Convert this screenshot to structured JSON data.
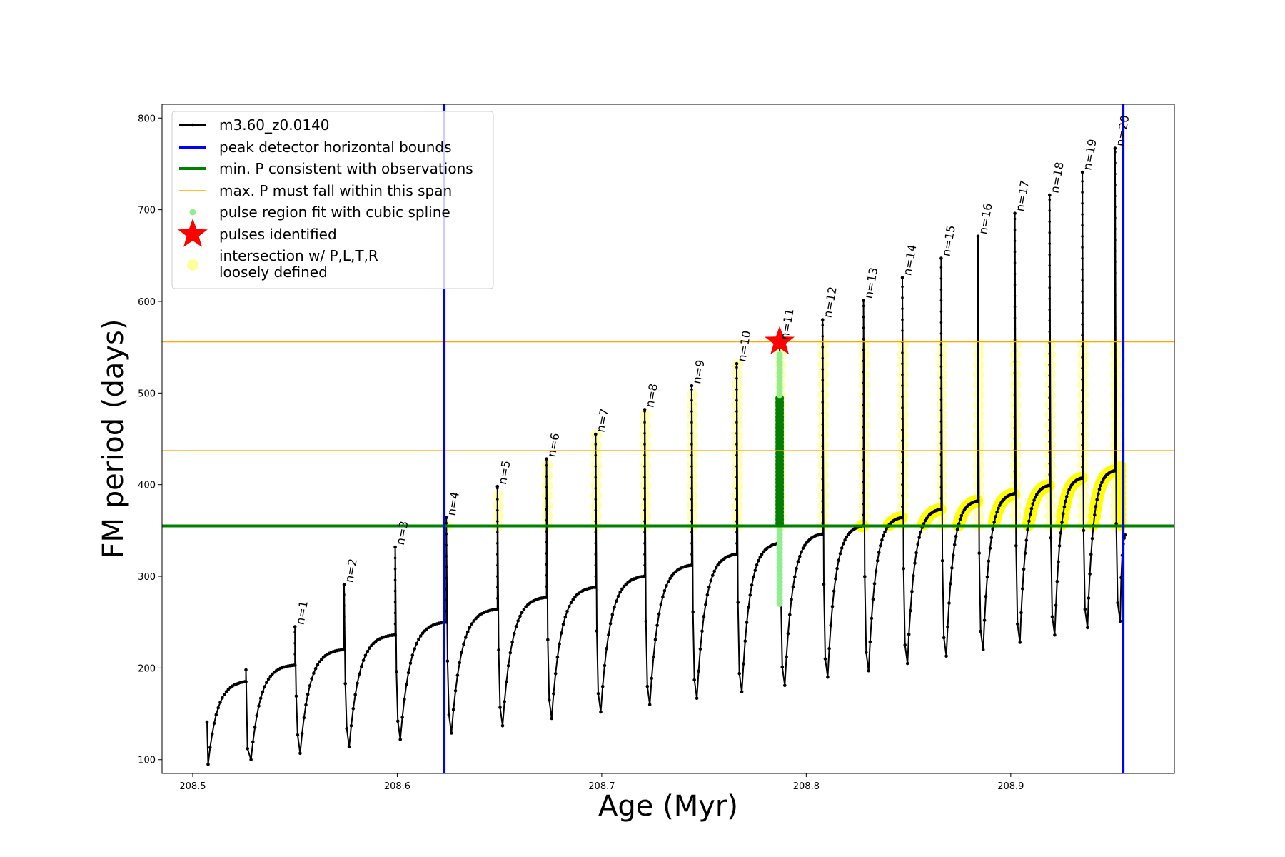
{
  "chart_data": {
    "type": "line",
    "xlabel": "Age (Myr)",
    "ylabel": "FM period (days)",
    "xlim": [
      208.485,
      208.98
    ],
    "ylim": [
      85,
      815
    ],
    "x_ticks": [
      208.5,
      208.6,
      208.7,
      208.8,
      208.9
    ],
    "y_ticks": [
      100,
      200,
      300,
      400,
      500,
      600,
      700,
      800
    ],
    "legend_position": "upper-left",
    "legend": [
      {
        "label": "m3.60_z0.0140",
        "color": "#000000",
        "marker": "line-dot"
      },
      {
        "label": "peak detector horizontal bounds",
        "color": "#0000ff",
        "marker": "thick-line"
      },
      {
        "label": "min. P consistent with observations",
        "color": "#008000",
        "marker": "thick-line"
      },
      {
        "label": "max. P must fall within this span",
        "color": "#ffa500",
        "marker": "thin-line"
      },
      {
        "label": "pulse region fit with cubic spline",
        "color": "#90ee90",
        "marker": "dot"
      },
      {
        "label": "pulses identified",
        "color": "#ff0000",
        "marker": "star"
      },
      {
        "label": "intersection w/ P,L,T,R",
        "label2": "loosely defined",
        "color": "#ffff99",
        "marker": "big-dot"
      }
    ],
    "vertical_lines": [
      {
        "x": 208.623,
        "color": "#0000ff",
        "role": "peak detector horizontal bounds"
      },
      {
        "x": 208.955,
        "color": "#0000ff",
        "role": "peak detector horizontal bounds"
      }
    ],
    "horizontal_lines": [
      {
        "y": 355,
        "color": "#008000",
        "role": "min. P consistent with observations"
      },
      {
        "y": 437,
        "color": "#ffa500",
        "role": "max. P must fall within this span"
      },
      {
        "y": 556,
        "color": "#ffa500",
        "role": "max. P must fall within this span"
      }
    ],
    "pulses": [
      {
        "label": "n=1",
        "x": 208.55,
        "peak": 245,
        "pre": 203,
        "min": 107
      },
      {
        "label": "n=2",
        "x": 208.574,
        "peak": 291,
        "pre": 220,
        "min": 114
      },
      {
        "label": "n=3",
        "x": 208.599,
        "peak": 332,
        "pre": 236,
        "min": 122
      },
      {
        "label": "n=4",
        "x": 208.624,
        "peak": 364,
        "pre": 250,
        "min": 129
      },
      {
        "label": "n=5",
        "x": 208.649,
        "peak": 398,
        "pre": 264,
        "min": 137
      },
      {
        "label": "n=6",
        "x": 208.673,
        "peak": 428,
        "pre": 277,
        "min": 145
      },
      {
        "label": "n=7",
        "x": 208.697,
        "peak": 455,
        "pre": 288,
        "min": 152
      },
      {
        "label": "n=8",
        "x": 208.721,
        "peak": 482,
        "pre": 300,
        "min": 160
      },
      {
        "label": "n=9",
        "x": 208.744,
        "peak": 508,
        "pre": 312,
        "min": 167
      },
      {
        "label": "n=10",
        "x": 208.766,
        "peak": 532,
        "pre": 324,
        "min": 174
      },
      {
        "label": "n=11",
        "x": 208.787,
        "peak": 556,
        "pre": 336,
        "min": 181
      },
      {
        "label": "n=12",
        "x": 208.808,
        "peak": 580,
        "pre": 346,
        "min": 190
      },
      {
        "label": "n=13",
        "x": 208.828,
        "peak": 601,
        "pre": 355,
        "min": 197
      },
      {
        "label": "n=14",
        "x": 208.847,
        "peak": 626,
        "pre": 364,
        "min": 205
      },
      {
        "label": "n=15",
        "x": 208.866,
        "peak": 647,
        "pre": 373,
        "min": 213
      },
      {
        "label": "n=16",
        "x": 208.884,
        "peak": 671,
        "pre": 382,
        "min": 220
      },
      {
        "label": "n=17",
        "x": 208.902,
        "peak": 696,
        "pre": 390,
        "min": 228
      },
      {
        "label": "n=18",
        "x": 208.919,
        "peak": 716,
        "pre": 399,
        "min": 236
      },
      {
        "label": "n=19",
        "x": 208.935,
        "peak": 741,
        "pre": 407,
        "min": 244
      },
      {
        "label": "n=20",
        "x": 208.951,
        "peak": 767,
        "pre": 415,
        "min": 251
      }
    ],
    "initial_segment": {
      "start_x": 208.507,
      "start_y": 141,
      "low_y": 95,
      "pre": 185,
      "pulse_x": 208.526,
      "pulse_peak": 198,
      "pulse_min": 100
    },
    "identified_pulse": {
      "label": "n=11",
      "x": 208.787,
      "y": 556
    }
  }
}
